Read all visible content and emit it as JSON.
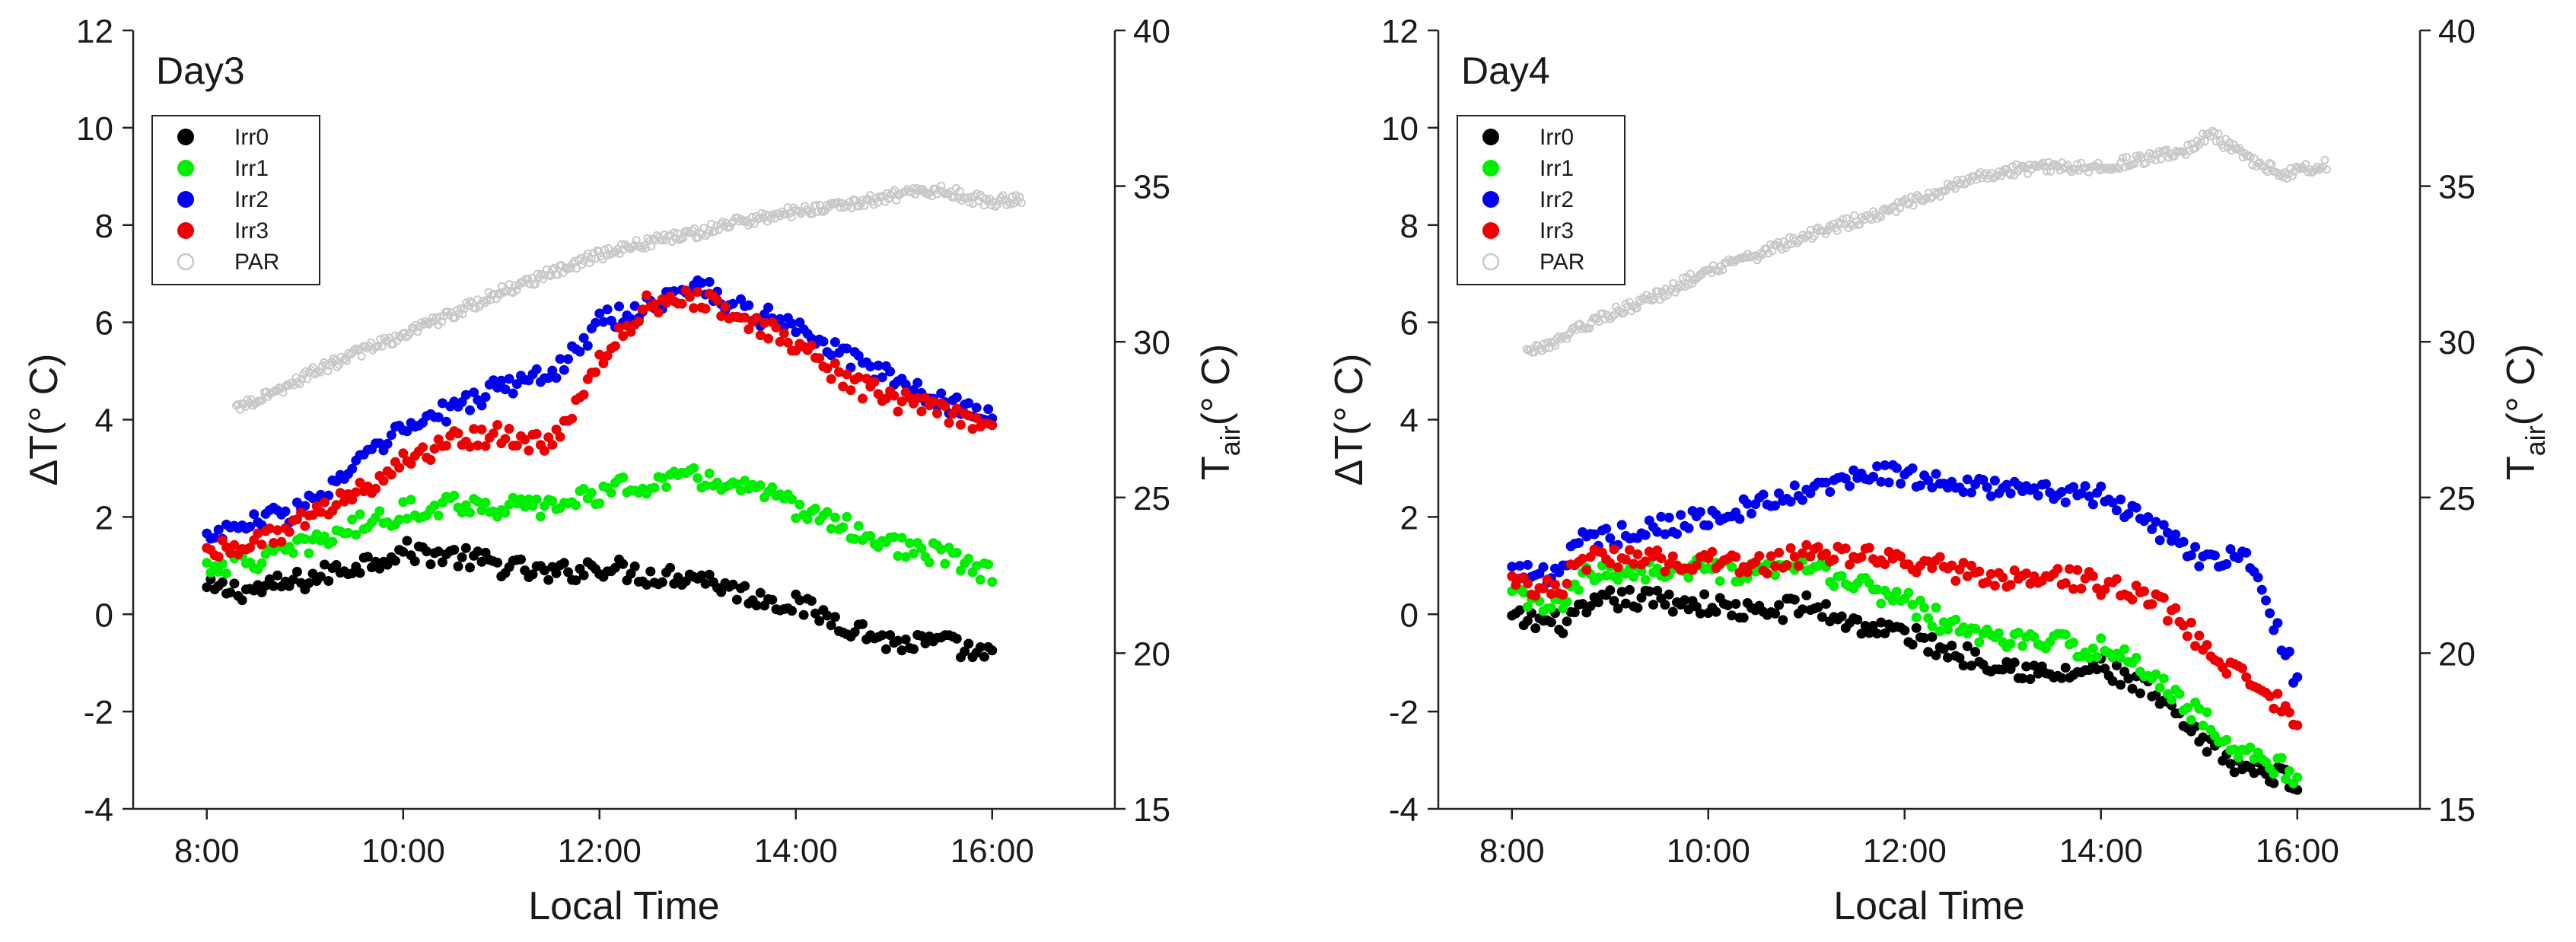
{
  "chart_data": [
    {
      "type": "scatter",
      "title": "Day3",
      "xlabel": "Local Time",
      "ylabel": "ΔT(° C)",
      "y2label_main": "T",
      "y2label_sub": "air",
      "y2label_tail": "(° C)",
      "xlim": [
        7.25,
        17.25
      ],
      "ylim": [
        -4,
        12
      ],
      "y2lim": [
        15,
        40
      ],
      "xticks": [
        8,
        10,
        12,
        14,
        16
      ],
      "xtick_labels": [
        "8:00",
        "10:00",
        "12:00",
        "14:00",
        "16:00"
      ],
      "yticks": [
        -4,
        -2,
        0,
        2,
        4,
        6,
        8,
        10,
        12
      ],
      "ytick_labels": [
        "-4",
        "-2",
        "0",
        "2",
        "4",
        "6",
        "8",
        "10",
        "12"
      ],
      "y2ticks": [
        15,
        20,
        25,
        30,
        35,
        40
      ],
      "y2tick_labels": [
        "15",
        "20",
        "25",
        "30",
        "35",
        "40"
      ],
      "legend_position": "upper-left",
      "series": [
        {
          "name": "Irr0",
          "color": "#000000",
          "marker": "filled-circle",
          "axis": "left",
          "x": [
            8.0,
            8.5,
            9.0,
            9.5,
            10.0,
            10.5,
            11.0,
            11.5,
            12.0,
            12.5,
            13.0,
            13.5,
            14.0,
            14.5,
            15.0,
            15.5,
            16.0
          ],
          "y": [
            0.5,
            0.5,
            0.7,
            1.0,
            1.3,
            1.2,
            1.0,
            0.8,
            1.0,
            0.8,
            0.8,
            0.4,
            0.2,
            -0.2,
            -0.6,
            -0.6,
            -0.9
          ]
        },
        {
          "name": "Irr1",
          "color": "#00ee00",
          "marker": "filled-circle",
          "axis": "left",
          "x": [
            8.0,
            8.5,
            9.0,
            9.5,
            10.0,
            10.5,
            11.0,
            11.5,
            12.0,
            12.5,
            13.0,
            13.5,
            14.0,
            14.5,
            15.0,
            15.5,
            16.0
          ],
          "y": [
            1.0,
            1.1,
            1.4,
            1.8,
            2.1,
            2.3,
            2.2,
            2.2,
            2.5,
            2.7,
            2.8,
            2.6,
            2.2,
            1.8,
            1.4,
            1.2,
            0.8
          ]
        },
        {
          "name": "Irr2",
          "color": "#0000ee",
          "marker": "filled-circle",
          "axis": "left",
          "x": [
            8.0,
            8.5,
            9.0,
            9.5,
            10.0,
            10.5,
            11.0,
            11.5,
            12.0,
            12.5,
            13.0,
            13.5,
            14.0,
            14.5,
            15.0,
            15.5,
            16.0
          ],
          "y": [
            1.6,
            1.9,
            2.2,
            3.0,
            3.8,
            4.2,
            4.7,
            4.9,
            6.0,
            6.3,
            6.8,
            6.2,
            6.0,
            5.3,
            4.8,
            4.4,
            4.0
          ]
        },
        {
          "name": "Irr3",
          "color": "#ee0000",
          "marker": "filled-circle",
          "axis": "left",
          "x": [
            8.0,
            8.5,
            9.0,
            9.5,
            10.0,
            10.5,
            11.0,
            11.5,
            12.0,
            12.5,
            13.0,
            13.5,
            14.0,
            14.5,
            15.0,
            15.5,
            16.0
          ],
          "y": [
            1.3,
            1.5,
            1.9,
            2.5,
            3.1,
            3.6,
            3.7,
            3.4,
            5.2,
            6.4,
            6.5,
            6.0,
            5.6,
            4.8,
            4.4,
            4.2,
            3.7
          ]
        },
        {
          "name": "PAR",
          "color": "#c8c8c8",
          "marker": "open-circle",
          "axis": "right",
          "x": [
            8.3,
            8.7,
            9.0,
            9.5,
            10.0,
            10.5,
            11.0,
            11.5,
            12.0,
            12.5,
            13.0,
            13.5,
            14.0,
            14.5,
            15.0,
            15.5,
            15.8,
            16.0,
            16.3
          ],
          "y": [
            27.9,
            28.4,
            28.9,
            29.6,
            30.2,
            30.9,
            31.6,
            32.2,
            32.8,
            33.2,
            33.5,
            33.9,
            34.2,
            34.4,
            34.7,
            34.9,
            34.6,
            34.5,
            34.6
          ]
        }
      ]
    },
    {
      "type": "scatter",
      "title": "Day4",
      "xlabel": "Local Time",
      "ylabel": "ΔT(° C)",
      "y2label_main": "T",
      "y2label_sub": "air",
      "y2label_tail": "(° C)",
      "xlim": [
        7.25,
        17.25
      ],
      "ylim": [
        -4,
        12
      ],
      "y2lim": [
        15,
        40
      ],
      "xticks": [
        8,
        10,
        12,
        14,
        16
      ],
      "xtick_labels": [
        "8:00",
        "10:00",
        "12:00",
        "14:00",
        "16:00"
      ],
      "yticks": [
        -4,
        -2,
        0,
        2,
        4,
        6,
        8,
        10,
        12
      ],
      "ytick_labels": [
        "-4",
        "-2",
        "0",
        "2",
        "4",
        "6",
        "8",
        "10",
        "12"
      ],
      "y2ticks": [
        15,
        20,
        25,
        30,
        35,
        40
      ],
      "y2tick_labels": [
        "15",
        "20",
        "25",
        "30",
        "35",
        "40"
      ],
      "legend_position": "upper-left",
      "series": [
        {
          "name": "Irr0",
          "color": "#000000",
          "marker": "filled-circle",
          "axis": "left",
          "x": [
            8.0,
            8.5,
            8.7,
            9.0,
            9.5,
            10.0,
            10.5,
            11.0,
            11.5,
            12.0,
            12.5,
            13.0,
            13.5,
            14.0,
            14.5,
            15.0,
            15.5,
            16.0
          ],
          "y": [
            -0.1,
            -0.2,
            0.0,
            0.3,
            0.3,
            0.2,
            0.0,
            0.2,
            -0.2,
            -0.4,
            -0.8,
            -1.0,
            -1.3,
            -1.1,
            -1.6,
            -2.6,
            -3.2,
            -3.4
          ]
        },
        {
          "name": "Irr1",
          "color": "#00ee00",
          "marker": "filled-circle",
          "axis": "left",
          "x": [
            8.0,
            8.5,
            8.7,
            9.0,
            9.5,
            10.0,
            10.5,
            11.0,
            11.5,
            12.0,
            12.5,
            13.0,
            13.5,
            14.0,
            14.5,
            15.0,
            15.5,
            16.0
          ],
          "y": [
            0.4,
            0.1,
            0.7,
            0.9,
            0.9,
            0.9,
            0.8,
            1.0,
            0.6,
            0.3,
            -0.3,
            -0.5,
            -0.6,
            -0.7,
            -1.2,
            -2.1,
            -2.9,
            -3.3
          ]
        },
        {
          "name": "Irr2",
          "color": "#0000ee",
          "marker": "filled-circle",
          "axis": "left",
          "x": [
            8.0,
            8.5,
            8.7,
            9.0,
            9.5,
            10.0,
            10.5,
            11.0,
            11.5,
            12.0,
            12.5,
            13.0,
            13.5,
            14.0,
            14.5,
            15.0,
            15.5,
            16.0
          ],
          "y": [
            0.9,
            0.8,
            1.6,
            1.6,
            1.8,
            2.0,
            2.2,
            2.5,
            2.8,
            2.9,
            2.6,
            2.6,
            2.5,
            2.4,
            1.9,
            1.1,
            1.2,
            -1.4
          ]
        },
        {
          "name": "Irr3",
          "color": "#ee0000",
          "marker": "filled-circle",
          "axis": "left",
          "x": [
            8.0,
            8.5,
            8.7,
            9.0,
            9.5,
            10.0,
            10.5,
            11.0,
            11.5,
            12.0,
            12.5,
            13.0,
            13.5,
            14.0,
            14.5,
            15.0,
            15.5,
            16.0
          ],
          "y": [
            0.7,
            0.5,
            1.1,
            1.2,
            1.1,
            1.1,
            1.0,
            1.2,
            1.2,
            1.1,
            0.9,
            0.7,
            0.8,
            0.6,
            0.4,
            -0.5,
            -1.4,
            -2.1
          ]
        },
        {
          "name": "PAR",
          "color": "#c8c8c8",
          "marker": "open-circle",
          "axis": "right",
          "x": [
            8.15,
            8.5,
            9.0,
            9.5,
            10.0,
            10.5,
            11.0,
            11.5,
            12.0,
            12.5,
            13.0,
            13.5,
            14.0,
            14.5,
            14.9,
            15.1,
            15.3,
            15.6,
            15.9,
            16.3
          ],
          "y": [
            29.7,
            30.1,
            30.9,
            31.5,
            32.3,
            32.8,
            33.4,
            33.9,
            34.4,
            35.0,
            35.5,
            35.6,
            35.6,
            35.9,
            36.2,
            36.7,
            36.3,
            35.7,
            35.4,
            35.7
          ]
        }
      ]
    }
  ]
}
